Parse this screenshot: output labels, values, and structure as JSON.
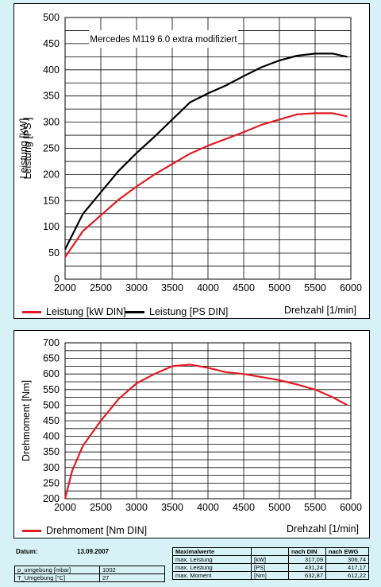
{
  "chart_data": [
    {
      "type": "line",
      "title": "Mercedes M119 6.0 extra modifiziert",
      "xlabel": "Drehzahl [1/min]",
      "ylabel_outer": "Leistung [kW]",
      "ylabel_inner": "Leistung [PS ]",
      "xlim": [
        2000,
        6000
      ],
      "ylim": [
        0,
        500
      ],
      "xticks": [
        2000,
        2500,
        3000,
        3500,
        4000,
        4500,
        5000,
        5500,
        6000
      ],
      "yticks": [
        0,
        50,
        100,
        150,
        200,
        250,
        300,
        350,
        400,
        450,
        500
      ],
      "grid": true,
      "legend_position": "bottom",
      "series": [
        {
          "name": "Leistung [kW DIN]",
          "color": "#e31b23",
          "x": [
            2000,
            2250,
            2500,
            2750,
            3000,
            3250,
            3500,
            3750,
            4000,
            4250,
            4500,
            4750,
            5000,
            5250,
            5500,
            5750,
            5950
          ],
          "values": [
            42,
            92,
            122,
            152,
            177,
            200,
            220,
            240,
            255,
            268,
            281,
            295,
            305,
            315,
            317,
            317,
            311
          ]
        },
        {
          "name": "Leistung [PS DIN]",
          "color": "#000000",
          "x": [
            2000,
            2250,
            2500,
            2750,
            3000,
            3250,
            3500,
            3750,
            4000,
            4250,
            4500,
            4750,
            5000,
            5250,
            5500,
            5750,
            5950
          ],
          "values": [
            57,
            125,
            166,
            207,
            241,
            272,
            305,
            338,
            355,
            370,
            388,
            405,
            418,
            427,
            431,
            431,
            425
          ]
        }
      ]
    },
    {
      "type": "line",
      "xlabel": "Drehzahl [1/min]",
      "ylabel": "Drehmoment [Nm]",
      "xlim": [
        2000,
        6000
      ],
      "ylim": [
        200,
        700
      ],
      "xticks": [
        2000,
        2500,
        3000,
        3500,
        4000,
        4500,
        5000,
        5500,
        6000
      ],
      "yticks": [
        200,
        250,
        300,
        350,
        400,
        450,
        500,
        550,
        600,
        650,
        700
      ],
      "grid": true,
      "legend_position": "bottom",
      "series": [
        {
          "name": "Drehmoment [Nm DIN]",
          "color": "#e31b23",
          "x": [
            2000,
            2100,
            2250,
            2500,
            2750,
            3000,
            3250,
            3500,
            3750,
            4000,
            4250,
            4500,
            4750,
            5000,
            5250,
            5500,
            5750,
            5950
          ],
          "values": [
            200,
            290,
            370,
            450,
            520,
            570,
            600,
            625,
            630,
            620,
            606,
            600,
            590,
            580,
            566,
            550,
            525,
            500
          ]
        }
      ]
    }
  ],
  "footer": {
    "datum_label": "Datum:",
    "datum_value": "13.09.2007",
    "ambient": [
      {
        "label": "p_umgebung [mbar]",
        "value": "1002"
      },
      {
        "label": "T_Umgebung [°C]",
        "value": "27"
      }
    ],
    "max_table": {
      "header": [
        "Maximalwerte",
        "",
        "nach DIN",
        "nach EWG"
      ],
      "rows": [
        {
          "label": "max. Leistung",
          "unit": "[kW]",
          "din": "317,09",
          "ewg": "306,74"
        },
        {
          "label": "max. Leistung",
          "unit": "[PS]",
          "din": "431,24",
          "ewg": "417,17"
        },
        {
          "label": "max. Moment",
          "unit": "[Nm]",
          "din": "632,87",
          "ewg": "612,22"
        }
      ]
    }
  }
}
